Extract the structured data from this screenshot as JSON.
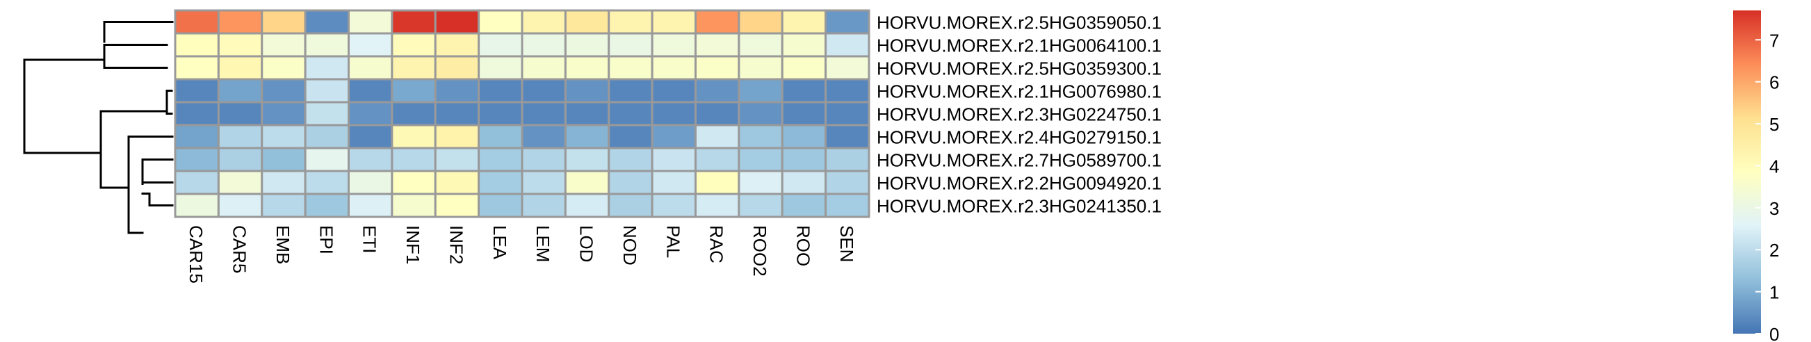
{
  "chart_data": {
    "type": "heatmap",
    "title": "",
    "xlabel": "",
    "ylabel": "",
    "columns": [
      "CAR15",
      "CAR5",
      "EMB",
      "EPI",
      "ETI",
      "INF1",
      "INF2",
      "LEA",
      "LEM",
      "LOD",
      "NOD",
      "PAL",
      "RAC",
      "ROO2",
      "ROO",
      "SEN"
    ],
    "rows": [
      "HORVU.MOREX.r2.5HG0359050.1",
      "HORVU.MOREX.r2.1HG0064100.1",
      "HORVU.MOREX.r2.5HG0359300.1",
      "HORVU.MOREX.r2.1HG0076980.1",
      "HORVU.MOREX.r2.3HG0224750.1",
      "HORVU.MOREX.r2.4HG0279150.1",
      "HORVU.MOREX.r2.7HG0589700.1",
      "HORVU.MOREX.r2.2HG0094920.1",
      "HORVU.MOREX.r2.3HG0241350.1"
    ],
    "values": [
      [
        6.8,
        6.3,
        5.3,
        0.4,
        3.3,
        7.6,
        7.7,
        3.8,
        4.3,
        4.8,
        4.3,
        4.3,
        6.3,
        5.3,
        4.3,
        0.6
      ],
      [
        3.9,
        4.0,
        3.3,
        3.2,
        2.6,
        4.0,
        4.3,
        2.9,
        3.0,
        3.1,
        3.0,
        3.2,
        3.3,
        3.2,
        3.5,
        2.3
      ],
      [
        3.8,
        4.2,
        3.7,
        2.3,
        3.5,
        4.3,
        4.6,
        3.2,
        3.5,
        3.6,
        3.6,
        3.6,
        3.7,
        3.5,
        3.7,
        3.3
      ],
      [
        0.3,
        0.8,
        0.5,
        2.2,
        0.3,
        0.9,
        0.5,
        0.3,
        0.3,
        0.5,
        0.3,
        0.3,
        0.5,
        0.8,
        0.3,
        0.3
      ],
      [
        0.3,
        0.3,
        0.5,
        2.1,
        0.5,
        0.3,
        0.3,
        0.3,
        0.3,
        0.3,
        0.3,
        0.3,
        0.3,
        0.5,
        0.3,
        0.3
      ],
      [
        0.8,
        1.8,
        2.0,
        1.7,
        0.3,
        4.1,
        4.4,
        1.3,
        0.5,
        1.1,
        0.3,
        0.7,
        2.3,
        1.5,
        1.2,
        0.3
      ],
      [
        1.2,
        1.7,
        1.3,
        2.8,
        1.9,
        1.9,
        2.1,
        1.6,
        1.8,
        2.1,
        1.8,
        2.2,
        1.9,
        1.6,
        1.5,
        1.7
      ],
      [
        1.9,
        3.3,
        2.3,
        2.0,
        3.0,
        3.8,
        4.1,
        1.6,
        2.0,
        3.6,
        1.8,
        2.3,
        3.9,
        2.5,
        2.3,
        1.8
      ],
      [
        3.1,
        2.5,
        1.9,
        1.5,
        2.5,
        3.5,
        3.8,
        1.5,
        1.8,
        2.4,
        1.7,
        2.0,
        2.4,
        1.9,
        1.5,
        1.6
      ]
    ],
    "value_range": [
      0,
      7.7
    ],
    "legend": {
      "ticks": [
        0,
        1,
        2,
        3,
        4,
        5,
        6,
        7
      ],
      "tick_labels": [
        "0",
        "1",
        "2",
        "3",
        "4",
        "5",
        "6",
        "7"
      ],
      "placement": "right",
      "colors": [
        "#4575b4",
        "#91bfdb",
        "#e0f3f8",
        "#ffffbf",
        "#fee090",
        "#fc8d59",
        "#d73027"
      ]
    },
    "dendrogram": "rows",
    "grid": true,
    "cell_border_color": "#999999"
  }
}
